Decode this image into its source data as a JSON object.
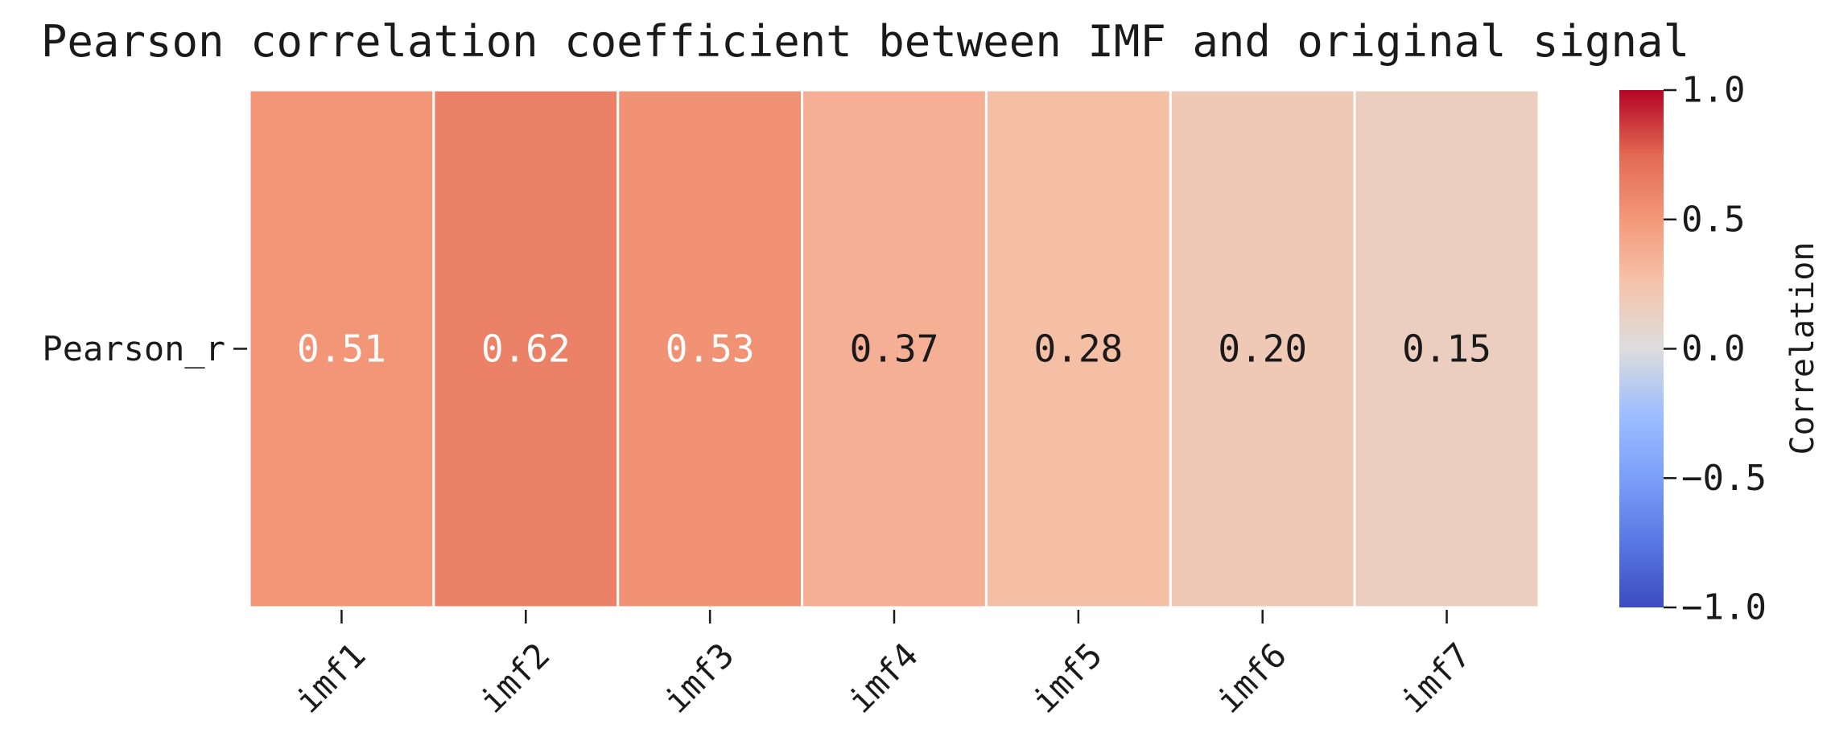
{
  "chart_data": {
    "type": "heatmap",
    "title": "Pearson correlation coefficient between IMF and original signal",
    "rows": [
      "Pearson_r"
    ],
    "columns": [
      "imf1",
      "imf2",
      "imf3",
      "imf4",
      "imf5",
      "imf6",
      "imf7"
    ],
    "values": [
      [
        0.51,
        0.62,
        0.53,
        0.37,
        0.28,
        0.2,
        0.15
      ]
    ],
    "value_labels": [
      [
        "0.51",
        "0.62",
        "0.53",
        "0.37",
        "0.28",
        "0.20",
        "0.15"
      ]
    ],
    "colormap": "coolwarm",
    "vmin": -1.0,
    "vmax": 1.0,
    "colorbar": {
      "label": "Correlation",
      "ticks": [
        1.0,
        0.5,
        0.0,
        -0.5,
        -1.0
      ],
      "tick_labels": [
        "1.0",
        "0.5",
        "0.0",
        "−0.5",
        "−1.0"
      ]
    },
    "colors": {
      "cool": "#3b4cc0",
      "neutral": "#dddddd",
      "warm": "#b40426",
      "cell_border": "#ffffff",
      "text_dark": "#1a1a1a",
      "text_light": "#ffffff"
    }
  }
}
